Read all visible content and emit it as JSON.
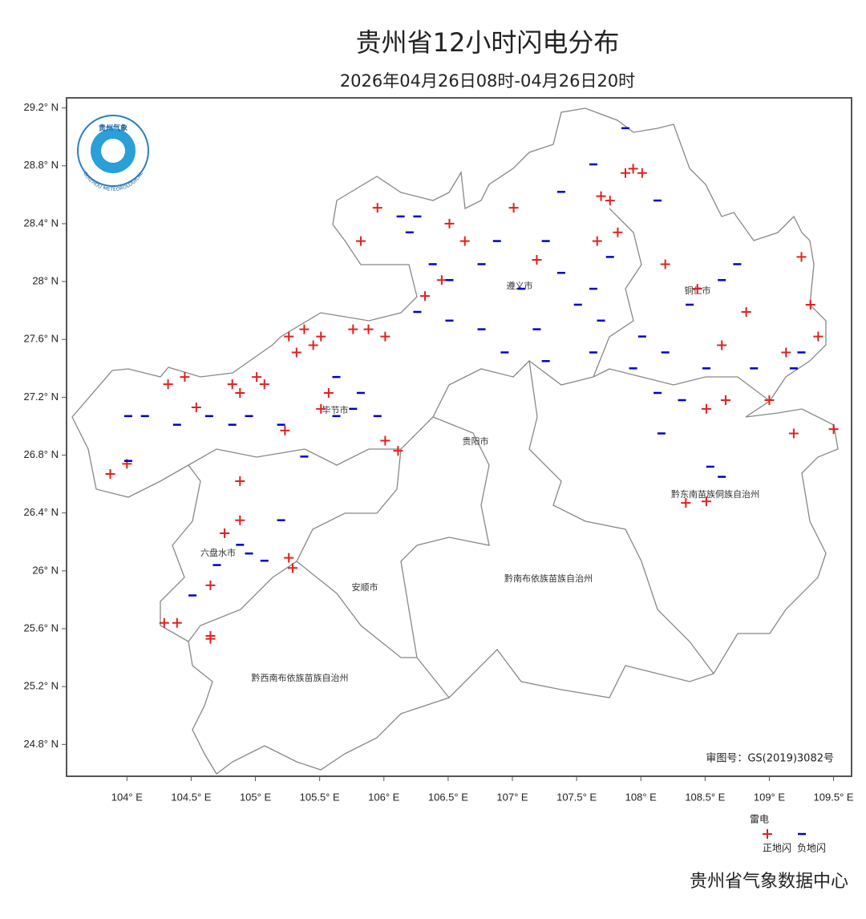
{
  "chart_data": {
    "type": "scatter",
    "title": "贵州省12小时闪电分布",
    "subtitle": "2026年04月26日08时-04月26日20时",
    "map_approval": "审图号：GS(2019)3082号",
    "legend_title": "雷电",
    "source": "贵州省气象数据中心",
    "xlim": [
      103.53,
      109.64
    ],
    "ylim": [
      24.58,
      29.27
    ],
    "xticks": [
      {
        "value": 104,
        "label": "104° E"
      },
      {
        "value": 104.5,
        "label": "104.5° E"
      },
      {
        "value": 105,
        "label": "105° E"
      },
      {
        "value": 105.5,
        "label": "105.5° E"
      },
      {
        "value": 106,
        "label": "106° E"
      },
      {
        "value": 106.5,
        "label": "106.5° E"
      },
      {
        "value": 107,
        "label": "107° E"
      },
      {
        "value": 107.5,
        "label": "107.5° E"
      },
      {
        "value": 108,
        "label": "108° E"
      },
      {
        "value": 108.5,
        "label": "108.5° E"
      },
      {
        "value": 109,
        "label": "109° E"
      },
      {
        "value": 109.5,
        "label": "109.5° E"
      }
    ],
    "yticks": [
      {
        "value": 29.2,
        "label": "29.2° N"
      },
      {
        "value": 28.8,
        "label": "28.8° N"
      },
      {
        "value": 28.4,
        "label": "28.4° N"
      },
      {
        "value": 28,
        "label": "28° N"
      },
      {
        "value": 27.6,
        "label": "27.6° N"
      },
      {
        "value": 27.2,
        "label": "27.2° N"
      },
      {
        "value": 26.8,
        "label": "26.8° N"
      },
      {
        "value": 26.4,
        "label": "26.4° N"
      },
      {
        "value": 26,
        "label": "26° N"
      },
      {
        "value": 25.6,
        "label": "25.6° N"
      },
      {
        "value": 25.2,
        "label": "25.2° N"
      },
      {
        "value": 24.8,
        "label": "24.8° N"
      }
    ],
    "regions": [
      "遵义市",
      "铜仁市",
      "毕节市",
      "贵阳市",
      "黔东南苗族侗族自治州",
      "六盘水市",
      "安顺市",
      "黔南布依族苗族自治州",
      "黔西南布依族苗族自治州"
    ],
    "series": [
      {
        "name": "正地闪",
        "color": "#e02020",
        "marker": "plus",
        "x": [
          103.87,
          104.0,
          104.32,
          104.45,
          104.54,
          104.82,
          104.88,
          105.01,
          105.07,
          105.26,
          105.32,
          105.38,
          105.45,
          105.51,
          105.76,
          105.88,
          106.01,
          105.95,
          105.82,
          106.32,
          106.45,
          106.63,
          106.51,
          107.01,
          107.19,
          107.69,
          107.88,
          107.94,
          108.01,
          107.76,
          107.66,
          107.82,
          108.19,
          108.44,
          108.82,
          109.25,
          109.32,
          109.38,
          109.13,
          109.0,
          108.63,
          108.51,
          108.66,
          109.19,
          109.5,
          108.51,
          108.35,
          106.11,
          106.01,
          105.23,
          104.88,
          104.76,
          104.88,
          105.26,
          105.29,
          104.65,
          104.29,
          104.39,
          104.65,
          104.65,
          105.51,
          105.57
        ],
        "y": [
          26.67,
          26.74,
          27.29,
          27.34,
          27.13,
          27.29,
          27.23,
          27.34,
          27.29,
          27.62,
          27.51,
          27.67,
          27.56,
          27.62,
          27.67,
          27.67,
          27.62,
          28.51,
          28.28,
          27.9,
          28.01,
          28.28,
          28.4,
          28.51,
          28.15,
          28.59,
          28.75,
          28.78,
          28.75,
          28.56,
          28.28,
          28.34,
          28.12,
          27.95,
          27.79,
          28.17,
          27.84,
          27.62,
          27.51,
          27.18,
          27.56,
          27.12,
          27.18,
          26.95,
          26.98,
          26.48,
          26.47,
          26.83,
          26.9,
          26.97,
          26.62,
          26.26,
          26.35,
          26.09,
          26.02,
          25.9,
          25.64,
          25.64,
          25.55,
          25.53,
          27.12,
          27.23
        ]
      },
      {
        "name": "负地闪",
        "color": "#0000cc",
        "marker": "dash",
        "x": [
          104.01,
          104.14,
          104.01,
          104.82,
          104.95,
          105.2,
          105.38,
          105.63,
          105.76,
          105.95,
          106.13,
          106.2,
          106.26,
          106.38,
          106.51,
          106.76,
          106.88,
          107.26,
          107.38,
          107.51,
          107.69,
          108.01,
          108.19,
          108.38,
          108.63,
          108.75,
          108.88,
          109.19,
          109.25,
          107.07,
          107.19,
          106.94,
          106.51,
          106.26,
          107.26,
          107.63,
          107.94,
          108.13,
          108.32,
          107.38,
          107.63,
          107.88,
          108.13,
          104.88,
          104.95,
          104.7,
          104.51,
          105.07,
          105.2,
          105.63,
          105.82,
          104.39,
          104.64,
          108.54,
          108.63,
          108.16,
          106.76,
          107.63,
          107.76,
          108.51
        ],
        "y": [
          26.76,
          27.07,
          27.07,
          27.01,
          27.07,
          27.01,
          26.79,
          27.07,
          27.12,
          27.07,
          28.45,
          28.34,
          28.45,
          28.12,
          28.01,
          28.12,
          28.28,
          28.28,
          28.06,
          27.84,
          27.73,
          27.62,
          27.51,
          27.84,
          28.01,
          28.12,
          27.4,
          27.4,
          27.51,
          27.95,
          27.67,
          27.51,
          27.73,
          27.79,
          27.45,
          27.51,
          27.4,
          27.23,
          27.18,
          28.62,
          28.81,
          29.06,
          28.56,
          26.18,
          26.12,
          26.04,
          25.83,
          26.07,
          26.35,
          27.34,
          27.23,
          27.01,
          27.07,
          26.72,
          26.65,
          26.95,
          27.67,
          27.95,
          28.17,
          27.4
        ]
      }
    ]
  },
  "logo": {
    "title": "贵州气象",
    "subtitle": "GUIZHOU METEOROLOGICAL"
  }
}
